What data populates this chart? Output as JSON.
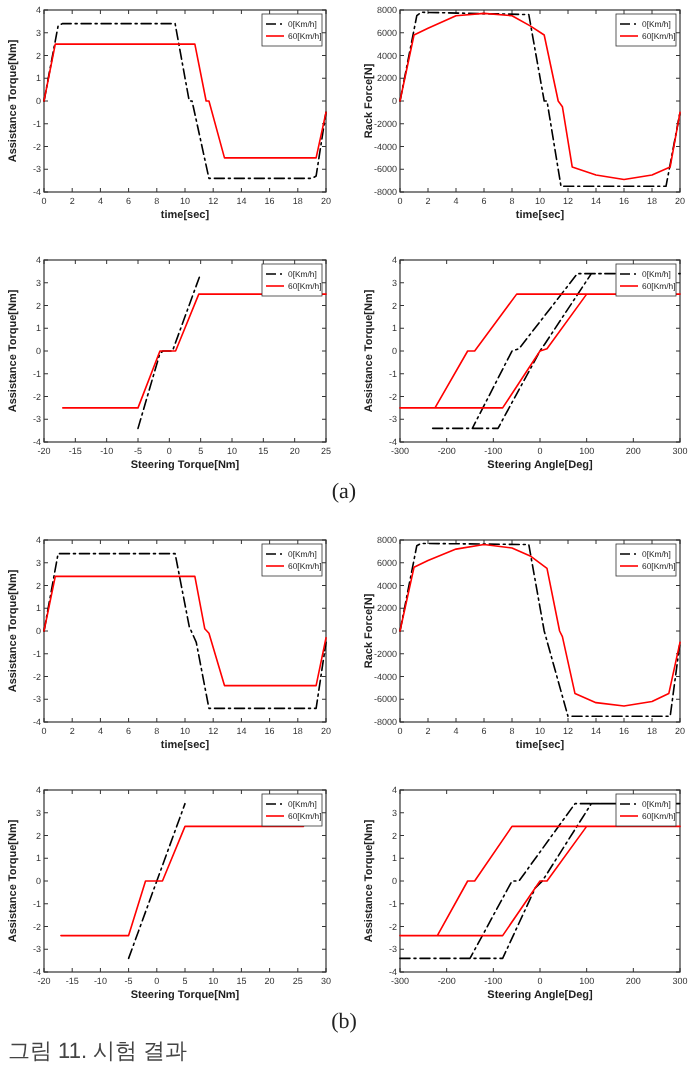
{
  "chart_data": [
    {
      "type": "line",
      "xlabel": "time[sec]",
      "ylabel": "Assistance Torque[Nm]",
      "xlim": [
        0,
        20
      ],
      "ylim": [
        -4,
        4
      ],
      "xticks": [
        0,
        2,
        4,
        6,
        8,
        10,
        12,
        14,
        16,
        18,
        20
      ],
      "yticks": [
        -4,
        -3,
        -2,
        -1,
        0,
        1,
        2,
        3,
        4
      ],
      "legend": "top right",
      "series": [
        {
          "name": "0[Km/h]",
          "color": "#000000",
          "line_style": "dashed",
          "x": [
            0,
            1,
            1.3,
            9.3,
            10.3,
            10.5,
            11.7,
            19,
            19.3,
            20
          ],
          "values": [
            0,
            3.3,
            3.4,
            3.4,
            0,
            0,
            -3.4,
            -3.4,
            -3.3,
            -0.5
          ]
        },
        {
          "name": "60[Km/h]",
          "color": "#ff0000",
          "line_style": "solid",
          "x": [
            0,
            0.8,
            1,
            10.7,
            11.5,
            11.7,
            12.8,
            19.3,
            20
          ],
          "values": [
            0,
            2.5,
            2.5,
            2.5,
            0,
            0,
            -2.5,
            -2.5,
            -0.5
          ]
        }
      ]
    },
    {
      "type": "line",
      "xlabel": "time[sec]",
      "ylabel": "Rack Force[N]",
      "xlim": [
        0,
        20
      ],
      "ylim": [
        -8000,
        8000
      ],
      "xticks": [
        0,
        2,
        4,
        6,
        8,
        10,
        12,
        14,
        16,
        18,
        20
      ],
      "yticks": [
        -8000,
        -6000,
        -4000,
        -2000,
        0,
        2000,
        4000,
        6000,
        8000
      ],
      "legend": "top right",
      "series": [
        {
          "name": "0[Km/h]",
          "color": "#000000",
          "line_style": "dashed",
          "x": [
            0,
            1.2,
            1.5,
            9.2,
            10.3,
            10.5,
            11.5,
            19,
            20
          ],
          "values": [
            0,
            7500,
            7800,
            7600,
            0,
            0,
            -7500,
            -7500,
            -1000
          ]
        },
        {
          "name": "60[Km/h]",
          "color": "#ff0000",
          "line_style": "solid",
          "x": [
            0,
            1,
            2,
            4,
            6,
            8,
            9.3,
            10.3,
            11.3,
            11.6,
            12.3,
            14,
            16,
            18,
            19.3,
            20
          ],
          "values": [
            0,
            5800,
            6400,
            7500,
            7700,
            7500,
            6600,
            5800,
            0,
            -500,
            -5800,
            -6500,
            -6900,
            -6500,
            -5800,
            -1000
          ]
        }
      ]
    },
    {
      "type": "line",
      "xlabel": "Steering Torque[Nm]",
      "ylabel": "Assistance Torque[Nm]",
      "xlim": [
        -20,
        25
      ],
      "ylim": [
        -4,
        4
      ],
      "xticks": [
        -20,
        -15,
        -10,
        -5,
        0,
        5,
        10,
        15,
        20,
        25
      ],
      "yticks": [
        -4,
        -3,
        -2,
        -1,
        0,
        1,
        2,
        3,
        4
      ],
      "legend": "top right",
      "series": [
        {
          "name": "0[Km/h]",
          "color": "#000000",
          "line_style": "dashed",
          "x": [
            -5,
            -1.5,
            -1,
            0.5,
            5
          ],
          "values": [
            -3.4,
            -0.1,
            0,
            0,
            3.4
          ]
        },
        {
          "name": "60[Km/h]",
          "color": "#ff0000",
          "line_style": "solid",
          "x": [
            -17,
            -5,
            -1.5,
            -0.5,
            1,
            4.7,
            25
          ],
          "values": [
            -2.5,
            -2.5,
            0,
            0,
            0,
            2.5,
            2.5
          ]
        }
      ]
    },
    {
      "type": "line",
      "xlabel": "Steering Angle[Deg]",
      "ylabel": "Assistance Torque[Nm]",
      "xlim": [
        -300,
        300
      ],
      "ylim": [
        -4,
        4
      ],
      "xticks": [
        -300,
        -200,
        -100,
        0,
        100,
        200,
        300
      ],
      "yticks": [
        -4,
        -3,
        -2,
        -1,
        0,
        1,
        2,
        3,
        4
      ],
      "legend": "top right",
      "annotations": [
        "(a)"
      ],
      "series": [
        {
          "name": "0[Km/h]",
          "color": "#000000",
          "line_style": "dashed",
          "x": [
            -230,
            -90,
            0,
            10,
            110,
            300,
            80,
            -45,
            -60,
            -145
          ],
          "values": [
            -3.4,
            -3.4,
            0,
            0.3,
            3.4,
            3.4,
            3.4,
            0.1,
            0,
            -3.4
          ]
        },
        {
          "name": "60[Km/h]",
          "color": "#ff0000",
          "line_style": "solid",
          "x": [
            -300,
            -80,
            0,
            15,
            100,
            300,
            -50,
            -140,
            -155,
            -225
          ],
          "values": [
            -2.5,
            -2.5,
            0,
            0.1,
            2.5,
            2.5,
            2.5,
            0,
            0,
            -2.5
          ]
        }
      ]
    },
    {
      "type": "line",
      "xlabel": "time[sec]",
      "ylabel": "Assistance Torque[Nm]",
      "xlim": [
        0,
        20
      ],
      "ylim": [
        -4,
        4
      ],
      "xticks": [
        0,
        2,
        4,
        6,
        8,
        10,
        12,
        14,
        16,
        18,
        20
      ],
      "yticks": [
        -4,
        -3,
        -2,
        -1,
        0,
        1,
        2,
        3,
        4
      ],
      "legend": "top right",
      "series": [
        {
          "name": "0[Km/h]",
          "color": "#000000",
          "line_style": "dashed",
          "x": [
            0,
            1,
            9.3,
            10.3,
            10.8,
            11.7,
            19.3,
            20
          ],
          "values": [
            0,
            3.4,
            3.4,
            0.2,
            -0.5,
            -3.4,
            -3.4,
            -0.5
          ]
        },
        {
          "name": "60[Km/h]",
          "color": "#ff0000",
          "line_style": "solid",
          "x": [
            0,
            0.8,
            10.7,
            11.4,
            11.7,
            12.8,
            19.3,
            20
          ],
          "values": [
            0,
            2.4,
            2.4,
            0.1,
            -0.1,
            -2.4,
            -2.4,
            -0.3
          ]
        }
      ]
    },
    {
      "type": "line",
      "xlabel": "time[sec]",
      "ylabel": "Rack Force[N]",
      "xlim": [
        0,
        20
      ],
      "ylim": [
        -8000,
        8000
      ],
      "xticks": [
        0,
        2,
        4,
        6,
        8,
        10,
        12,
        14,
        16,
        18,
        20
      ],
      "yticks": [
        -8000,
        -6000,
        -4000,
        -2000,
        0,
        2000,
        4000,
        6000,
        8000
      ],
      "legend": "top right",
      "series": [
        {
          "name": "0[Km/h]",
          "color": "#000000",
          "line_style": "dashed",
          "x": [
            0,
            1.2,
            1.5,
            9.2,
            10.3,
            12,
            19.3,
            20
          ],
          "values": [
            0,
            7500,
            7700,
            7600,
            0,
            -7500,
            -7500,
            -1000
          ]
        },
        {
          "name": "60[Km/h]",
          "color": "#ff0000",
          "line_style": "solid",
          "x": [
            0,
            1,
            2,
            4,
            6,
            8,
            9.3,
            10.5,
            11.4,
            11.6,
            12.5,
            14,
            16,
            18,
            19.2,
            20
          ],
          "values": [
            0,
            5600,
            6200,
            7200,
            7600,
            7300,
            6600,
            5500,
            0,
            -500,
            -5500,
            -6300,
            -6600,
            -6200,
            -5500,
            -1000
          ]
        }
      ]
    },
    {
      "type": "line",
      "xlabel": "Steering Torque[Nm]",
      "ylabel": "Assistance Torque[Nm]",
      "xlim": [
        -20,
        30
      ],
      "ylim": [
        -4,
        4
      ],
      "xticks": [
        -20,
        -15,
        -10,
        -5,
        0,
        5,
        10,
        15,
        20,
        25,
        30
      ],
      "yticks": [
        -4,
        -3,
        -2,
        -1,
        0,
        1,
        2,
        3,
        4
      ],
      "legend": "top right",
      "series": [
        {
          "name": "0[Km/h]",
          "color": "#000000",
          "line_style": "dashed",
          "x": [
            -5,
            5
          ],
          "values": [
            -3.4,
            3.4
          ]
        },
        {
          "name": "60[Km/h]",
          "color": "#ff0000",
          "line_style": "solid",
          "x": [
            -17,
            -5,
            -2,
            0,
            1,
            5,
            26
          ],
          "values": [
            -2.4,
            -2.4,
            0,
            0,
            0,
            2.4,
            2.4
          ]
        }
      ]
    },
    {
      "type": "line",
      "xlabel": "Steering Angle[Deg]",
      "ylabel": "Assistance Torque[Nm]",
      "xlim": [
        -300,
        300
      ],
      "ylim": [
        -4,
        4
      ],
      "xticks": [
        -300,
        -200,
        -100,
        0,
        100,
        200,
        300
      ],
      "yticks": [
        -4,
        -3,
        -2,
        -1,
        0,
        1,
        2,
        3,
        4
      ],
      "legend": "top right",
      "annotations": [
        "(b)",
        "그림 11. 시험 결과"
      ],
      "series": [
        {
          "name": "0[Km/h]",
          "color": "#000000",
          "line_style": "dashed",
          "x": [
            -300,
            -80,
            -10,
            5,
            110,
            300,
            75,
            -45,
            -60,
            -150
          ],
          "values": [
            -3.4,
            -3.4,
            -0.3,
            0,
            3.4,
            3.4,
            3.4,
            0,
            0,
            -3.4
          ]
        },
        {
          "name": "60[Km/h]",
          "color": "#ff0000",
          "line_style": "solid",
          "x": [
            -300,
            -80,
            0,
            15,
            100,
            300,
            -60,
            -140,
            -155,
            -220
          ],
          "values": [
            -2.4,
            -2.4,
            0,
            0,
            2.4,
            2.4,
            2.4,
            0,
            0,
            -2.4
          ]
        }
      ]
    }
  ]
}
